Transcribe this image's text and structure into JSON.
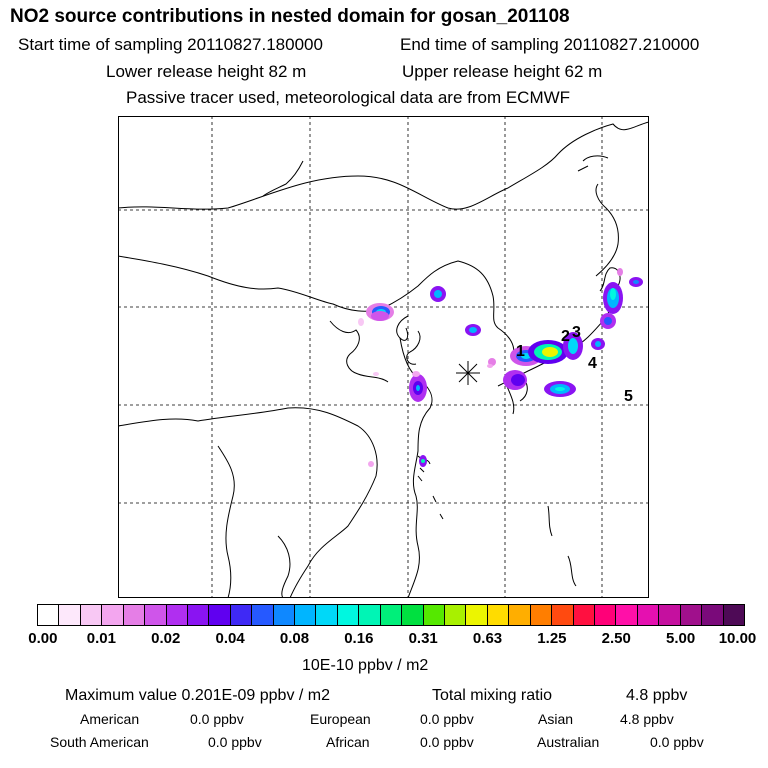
{
  "header": {
    "title": "NO2 source contributions in nested domain for gosan_201108",
    "start": "Start time of sampling 20110827.180000",
    "end": "End time of sampling 20110827.210000",
    "lower": "Lower release height   82 m",
    "upper": "Upper release height   62 m",
    "note": "Passive tracer used, meteorological data are from ECMWF"
  },
  "map": {
    "markers": [
      "1",
      "2",
      "3",
      "4",
      "5"
    ],
    "receptor_symbol": "✳"
  },
  "colorbar": {
    "ticks": [
      "0.00",
      "0.01",
      "0.02",
      "0.04",
      "0.08",
      "0.16",
      "0.31",
      "0.63",
      "1.25",
      "2.50",
      "5.00",
      "10.00"
    ],
    "unit": "10E-10 ppbv / m2",
    "colors": [
      "#ffffff",
      "#fde8fb",
      "#f8c8f4",
      "#f3a6ef",
      "#e57ee6",
      "#cf55ea",
      "#b02ff0",
      "#8a14f2",
      "#6000f0",
      "#3f29f5",
      "#2659ff",
      "#0f88ff",
      "#00b5ff",
      "#00d8f8",
      "#00f7e0",
      "#00f5b5",
      "#00ef7a",
      "#00e040",
      "#55e800",
      "#a8f000",
      "#ecf500",
      "#ffdc00",
      "#ffae00",
      "#ff7e00",
      "#ff4a10",
      "#ff1040",
      "#ff0078",
      "#ff10a8",
      "#e510b0",
      "#c5109f",
      "#a0108c",
      "#7a0a7a",
      "#4e0a56"
    ]
  },
  "summary": {
    "max_label": "Maximum value  0.201E-09 ppbv / m2",
    "total_label": "Total mixing ratio",
    "total_value": "4.8 ppbv",
    "regions": [
      {
        "name": "American",
        "value": "0.0 ppbv"
      },
      {
        "name": "European",
        "value": "0.0 ppbv"
      },
      {
        "name": "Asian",
        "value": "4.8 ppbv"
      },
      {
        "name": "South American",
        "value": "0.0 ppbv"
      },
      {
        "name": "African",
        "value": "0.0 ppbv"
      },
      {
        "name": "Australian",
        "value": "0.0 ppbv"
      }
    ]
  }
}
